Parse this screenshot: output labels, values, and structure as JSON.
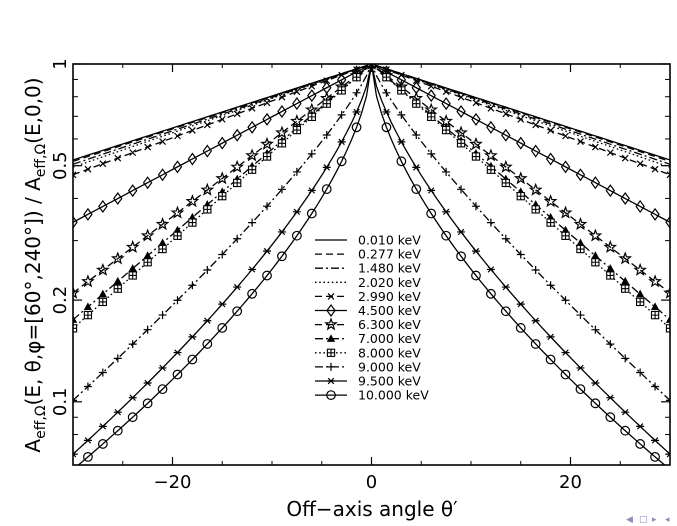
{
  "chart_data": {
    "type": "line",
    "xlabel": "Off−axis angle θ′",
    "ylabel": {
      "main_a": "A",
      "sub_a": "eff,Ω",
      "middle": "(E, θ,φ=[60°,240°]) / A",
      "sub_b": "eff,Ω",
      "end": "(E,0,0)"
    },
    "xlim": [
      -30,
      30
    ],
    "ylim": [
      0.065,
      1.0
    ],
    "yscale": "log",
    "xticks": [
      {
        "v": -20,
        "label": "−20"
      },
      {
        "v": 0,
        "label": "0"
      },
      {
        "v": 20,
        "label": "20"
      }
    ],
    "yticks": [
      {
        "v": 1,
        "label": "1"
      },
      {
        "v": 0.5,
        "label": "0.5"
      },
      {
        "v": 0.2,
        "label": "0.2"
      },
      {
        "v": 0.1,
        "label": "0.1"
      }
    ],
    "legend_position": "center",
    "series": [
      {
        "name": "0.010 keV",
        "dash": "solid",
        "marker": "none",
        "edge": 0.52,
        "shape": 1.0
      },
      {
        "name": "0.277 keV",
        "dash": "dashed",
        "marker": "none",
        "edge": 0.515,
        "shape": 1.0
      },
      {
        "name": "1.480 keV",
        "dash": "dashdot",
        "marker": "none",
        "edge": 0.505,
        "shape": 1.0
      },
      {
        "name": "2.020 keV",
        "dash": "dotted",
        "marker": "none",
        "edge": 0.495,
        "shape": 1.0
      },
      {
        "name": "2.990 keV",
        "dash": "dashed",
        "marker": "x",
        "edge": 0.47,
        "shape": 1.0
      },
      {
        "name": "4.500 keV",
        "dash": "solid",
        "marker": "diamond",
        "edge": 0.34,
        "shape": 1.0
      },
      {
        "name": "6.300 keV",
        "dash": "dashed",
        "marker": "star",
        "edge": 0.21,
        "shape": 1.0
      },
      {
        "name": "7.000 keV",
        "dash": "dashdot",
        "marker": "triangle",
        "edge": 0.175,
        "shape": 1.0
      },
      {
        "name": "8.000 keV",
        "dash": "dotted",
        "marker": "crosshatch",
        "edge": 0.165,
        "shape": 1.0
      },
      {
        "name": "9.000 keV",
        "dash": "dashdot",
        "marker": "plus",
        "edge": 0.101,
        "shape": 0.82
      },
      {
        "name": "9.500 keV",
        "dash": "solid",
        "marker": "asterisk",
        "edge": 0.07,
        "shape": 0.7
      },
      {
        "name": "10.000 keV",
        "dash": "solid",
        "marker": "circle",
        "edge": 0.063,
        "shape": 0.62
      }
    ]
  },
  "footer": {
    "nav_icons": [
      "◀",
      "□",
      "▸",
      "◂"
    ]
  }
}
